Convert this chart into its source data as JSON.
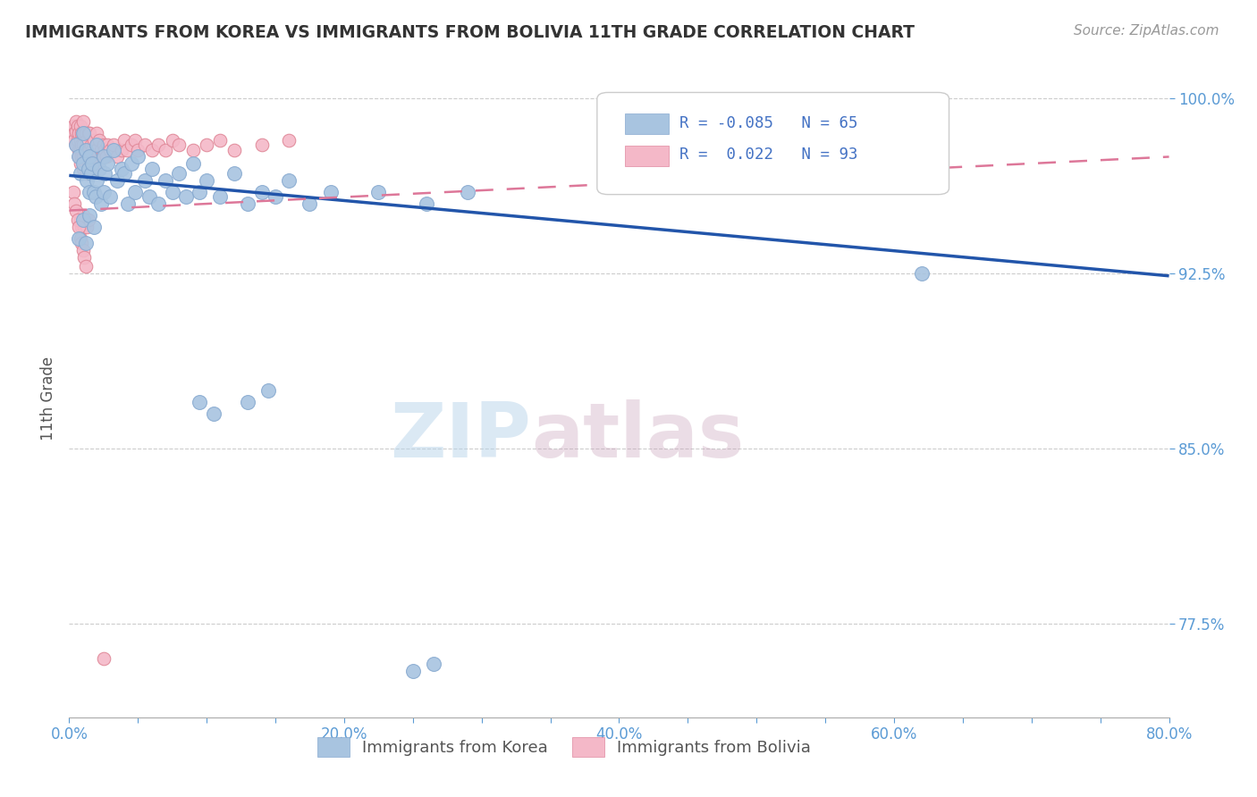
{
  "title": "IMMIGRANTS FROM KOREA VS IMMIGRANTS FROM BOLIVIA 11TH GRADE CORRELATION CHART",
  "source_text": "Source: ZipAtlas.com",
  "ylabel": "11th Grade",
  "watermark_zip": "ZIP",
  "watermark_atlas": "atlas",
  "xlim": [
    0.0,
    0.8
  ],
  "ylim": [
    0.735,
    1.008
  ],
  "xtick_labels": [
    "0.0%",
    "",
    "",
    "",
    "20.0%",
    "",
    "",
    "",
    "40.0%",
    "",
    "",
    "",
    "60.0%",
    "",
    "",
    "",
    "80.0%"
  ],
  "xtick_vals": [
    0.0,
    0.05,
    0.1,
    0.15,
    0.2,
    0.25,
    0.3,
    0.35,
    0.4,
    0.45,
    0.5,
    0.55,
    0.6,
    0.65,
    0.7,
    0.75,
    0.8
  ],
  "ytick_labels": [
    "77.5%",
    "85.0%",
    "92.5%",
    "100.0%"
  ],
  "ytick_vals": [
    0.775,
    0.85,
    0.925,
    1.0
  ],
  "hgrid_vals": [
    0.775,
    0.85,
    0.925,
    1.0
  ],
  "korea_color": "#a8c4e0",
  "bolivia_color": "#f4b8c8",
  "korea_R": -0.085,
  "korea_N": 65,
  "bolivia_R": 0.022,
  "bolivia_N": 93,
  "korea_line_color": "#2255aa",
  "bolivia_line_color": "#dd7799",
  "axis_color": "#5b9bd5",
  "legend_R_color": "#4472c4",
  "background_color": "#ffffff",
  "korea_line_x0": 0.0,
  "korea_line_y0": 0.967,
  "korea_line_x1": 0.8,
  "korea_line_y1": 0.924,
  "bolivia_line_x0": 0.0,
  "bolivia_line_y0": 0.952,
  "bolivia_line_x1": 0.8,
  "bolivia_line_y1": 0.975,
  "korea_x": [
    0.005,
    0.007,
    0.008,
    0.01,
    0.01,
    0.012,
    0.013,
    0.014,
    0.015,
    0.015,
    0.016,
    0.017,
    0.018,
    0.019,
    0.02,
    0.02,
    0.022,
    0.023,
    0.025,
    0.025,
    0.026,
    0.028,
    0.03,
    0.032,
    0.035,
    0.038,
    0.04,
    0.043,
    0.045,
    0.048,
    0.05,
    0.055,
    0.058,
    0.06,
    0.065,
    0.07,
    0.075,
    0.08,
    0.085,
    0.09,
    0.095,
    0.1,
    0.11,
    0.12,
    0.13,
    0.14,
    0.15,
    0.16,
    0.175,
    0.19,
    0.007,
    0.01,
    0.012,
    0.015,
    0.018,
    0.225,
    0.26,
    0.29,
    0.13,
    0.145,
    0.62,
    0.25,
    0.265,
    0.095,
    0.105
  ],
  "korea_y": [
    0.98,
    0.975,
    0.968,
    0.985,
    0.972,
    0.978,
    0.965,
    0.97,
    0.975,
    0.96,
    0.968,
    0.972,
    0.96,
    0.958,
    0.98,
    0.965,
    0.97,
    0.955,
    0.975,
    0.96,
    0.968,
    0.972,
    0.958,
    0.978,
    0.965,
    0.97,
    0.968,
    0.955,
    0.972,
    0.96,
    0.975,
    0.965,
    0.958,
    0.97,
    0.955,
    0.965,
    0.96,
    0.968,
    0.958,
    0.972,
    0.96,
    0.965,
    0.958,
    0.968,
    0.955,
    0.96,
    0.958,
    0.965,
    0.955,
    0.96,
    0.94,
    0.948,
    0.938,
    0.95,
    0.945,
    0.96,
    0.955,
    0.96,
    0.87,
    0.875,
    0.925,
    0.755,
    0.758,
    0.87,
    0.865
  ],
  "bolivia_x": [
    0.003,
    0.004,
    0.004,
    0.005,
    0.005,
    0.005,
    0.006,
    0.006,
    0.007,
    0.007,
    0.007,
    0.008,
    0.008,
    0.008,
    0.008,
    0.009,
    0.009,
    0.009,
    0.01,
    0.01,
    0.01,
    0.01,
    0.01,
    0.011,
    0.011,
    0.012,
    0.012,
    0.012,
    0.013,
    0.013,
    0.013,
    0.014,
    0.014,
    0.014,
    0.015,
    0.015,
    0.015,
    0.016,
    0.016,
    0.017,
    0.017,
    0.018,
    0.018,
    0.019,
    0.02,
    0.02,
    0.021,
    0.022,
    0.023,
    0.024,
    0.025,
    0.026,
    0.027,
    0.028,
    0.03,
    0.032,
    0.035,
    0.038,
    0.04,
    0.042,
    0.045,
    0.048,
    0.05,
    0.055,
    0.06,
    0.065,
    0.07,
    0.075,
    0.08,
    0.09,
    0.1,
    0.11,
    0.12,
    0.14,
    0.16,
    0.008,
    0.009,
    0.01,
    0.011,
    0.012,
    0.013,
    0.014,
    0.003,
    0.004,
    0.005,
    0.006,
    0.007,
    0.008,
    0.009,
    0.01,
    0.011,
    0.012,
    0.025
  ],
  "bolivia_y": [
    0.988,
    0.985,
    0.982,
    0.99,
    0.986,
    0.98,
    0.988,
    0.982,
    0.985,
    0.978,
    0.975,
    0.988,
    0.982,
    0.978,
    0.972,
    0.985,
    0.98,
    0.975,
    0.99,
    0.985,
    0.98,
    0.975,
    0.97,
    0.985,
    0.978,
    0.985,
    0.978,
    0.972,
    0.982,
    0.975,
    0.968,
    0.985,
    0.978,
    0.972,
    0.985,
    0.978,
    0.97,
    0.98,
    0.972,
    0.978,
    0.97,
    0.982,
    0.975,
    0.978,
    0.985,
    0.978,
    0.972,
    0.982,
    0.978,
    0.975,
    0.98,
    0.978,
    0.975,
    0.98,
    0.978,
    0.98,
    0.975,
    0.978,
    0.982,
    0.978,
    0.98,
    0.982,
    0.978,
    0.98,
    0.978,
    0.98,
    0.978,
    0.982,
    0.98,
    0.978,
    0.98,
    0.982,
    0.978,
    0.98,
    0.982,
    0.948,
    0.945,
    0.95,
    0.945,
    0.948,
    0.945,
    0.948,
    0.96,
    0.955,
    0.952,
    0.948,
    0.945,
    0.94,
    0.938,
    0.935,
    0.932,
    0.928,
    0.76
  ]
}
